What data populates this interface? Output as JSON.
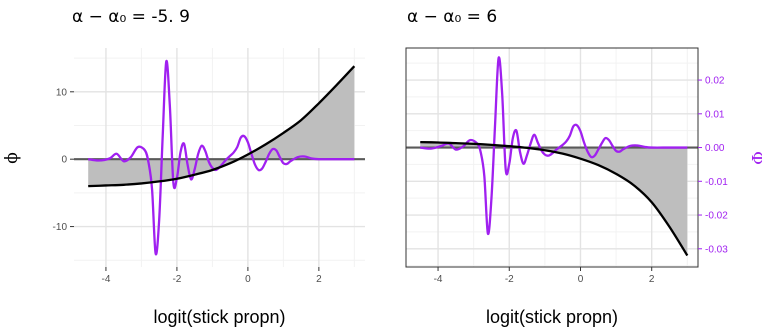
{
  "colors": {
    "phi_line": "#000000",
    "phi_fill": "#bebebe",
    "Phi_line": "#a020f0",
    "zero_line": "#5a5a5a",
    "grid_major": "#e3e3e3",
    "grid_minor": "#f2f2f2",
    "panel_border": "#333333"
  },
  "chart_data": [
    {
      "type": "line",
      "title": "α − α₀ = -5. 9",
      "xlabel": "logit(stick propn)",
      "ylabel": "ϕ",
      "xlim": [
        -4.9,
        3.3
      ],
      "ylim": [
        -16,
        16.5
      ],
      "xticks": [
        -4,
        -2,
        0,
        2
      ],
      "xtick_labels": [
        "-4",
        "-2",
        "0",
        "2"
      ],
      "yticks": [
        -10,
        0,
        10
      ],
      "ytick_labels": [
        "-10",
        "0",
        "10"
      ],
      "grid": true,
      "series": [
        {
          "role": "phi",
          "x": [
            -4.5,
            -4.0,
            -3.5,
            -3.0,
            -2.5,
            -2.0,
            -1.5,
            -1.0,
            -0.5,
            0.0,
            0.5,
            1.0,
            1.5,
            2.0,
            2.5,
            3.0
          ],
          "y": [
            -4.0,
            -3.9,
            -3.8,
            -3.6,
            -3.3,
            -2.9,
            -2.3,
            -1.6,
            -0.6,
            0.7,
            2.2,
            3.9,
            5.8,
            8.3,
            11.0,
            13.8
          ]
        },
        {
          "role": "Phi",
          "x": [
            -4.5,
            -4.2,
            -3.9,
            -3.7,
            -3.5,
            -3.3,
            -3.1,
            -2.9,
            -2.8,
            -2.7,
            -2.6,
            -2.5,
            -2.4,
            -2.3,
            -2.2,
            -2.1,
            -2.0,
            -1.9,
            -1.8,
            -1.7,
            -1.6,
            -1.5,
            -1.4,
            -1.3,
            -1.2,
            -1.1,
            -1.0,
            -0.9,
            -0.8,
            -0.7,
            -0.6,
            -0.5,
            -0.4,
            -0.3,
            -0.2,
            -0.1,
            0.0,
            0.1,
            0.2,
            0.3,
            0.4,
            0.5,
            0.6,
            0.7,
            0.8,
            0.9,
            1.0,
            1.1,
            1.2,
            1.4,
            1.6,
            1.8,
            2.0,
            2.5,
            3.0
          ],
          "y": [
            0.0,
            -0.2,
            0.1,
            0.8,
            -0.3,
            0.3,
            1.8,
            1.3,
            -0.5,
            -4.5,
            -14.0,
            -9.0,
            3.5,
            14.5,
            8.0,
            -3.5,
            -2.8,
            1.0,
            2.3,
            -0.8,
            -3.0,
            -1.5,
            0.8,
            2.0,
            1.2,
            -0.4,
            -1.3,
            -1.6,
            -1.2,
            -0.6,
            0.0,
            0.5,
            1.0,
            1.8,
            3.2,
            3.4,
            2.5,
            0.8,
            -0.8,
            -1.6,
            -1.4,
            -0.4,
            0.8,
            1.5,
            1.3,
            0.3,
            -0.6,
            -0.7,
            -0.3,
            0.3,
            0.4,
            0.1,
            0.0,
            0.0,
            0.0
          ]
        }
      ]
    },
    {
      "type": "line",
      "title": "α − α₀ = 6",
      "xlabel": "logit(stick propn)",
      "ylabel": "Φ",
      "xlim": [
        -4.9,
        3.3
      ],
      "ylim": [
        -0.0354,
        0.0295
      ],
      "xticks": [
        -4,
        -2,
        0,
        2
      ],
      "xtick_labels": [
        "-4",
        "-2",
        "0",
        "2"
      ],
      "yticks": [
        -0.03,
        -0.02,
        -0.01,
        0.0,
        0.01,
        0.02
      ],
      "ytick_labels": [
        "-0.03",
        "-0.02",
        "-0.01",
        "0.00",
        "0.01",
        "0.02"
      ],
      "grid": true,
      "series": [
        {
          "role": "phi",
          "x": [
            -4.5,
            -4.0,
            -3.5,
            -3.0,
            -2.5,
            -2.0,
            -1.5,
            -1.0,
            -0.5,
            0.0,
            0.5,
            1.0,
            1.5,
            2.0,
            2.5,
            3.0
          ],
          "y": [
            0.0016,
            0.0015,
            0.0013,
            0.0011,
            0.0008,
            0.0004,
            -0.0001,
            -0.0008,
            -0.0018,
            -0.0033,
            -0.0052,
            -0.0078,
            -0.0112,
            -0.0162,
            -0.0235,
            -0.032
          ]
        },
        {
          "role": "Phi",
          "x": [
            -4.5,
            -4.2,
            -3.9,
            -3.7,
            -3.5,
            -3.3,
            -3.1,
            -2.9,
            -2.8,
            -2.7,
            -2.6,
            -2.5,
            -2.4,
            -2.3,
            -2.2,
            -2.1,
            -2.0,
            -1.9,
            -1.8,
            -1.7,
            -1.6,
            -1.5,
            -1.4,
            -1.3,
            -1.2,
            -1.1,
            -1.0,
            -0.9,
            -0.8,
            -0.7,
            -0.6,
            -0.5,
            -0.4,
            -0.3,
            -0.2,
            -0.1,
            0.0,
            0.1,
            0.2,
            0.3,
            0.4,
            0.5,
            0.6,
            0.7,
            0.8,
            0.9,
            1.0,
            1.1,
            1.2,
            1.4,
            1.6,
            1.8,
            2.0,
            2.5,
            3.0
          ],
          "y": [
            0.0,
            -0.0003,
            0.0005,
            0.0012,
            -0.0006,
            0.0003,
            0.0022,
            0.0012,
            -0.0015,
            -0.0085,
            -0.0255,
            -0.015,
            0.0065,
            0.0265,
            0.016,
            -0.0065,
            -0.0048,
            0.0028,
            0.005,
            -0.0012,
            -0.0048,
            -0.0022,
            0.0012,
            0.0038,
            0.0015,
            -0.0008,
            -0.0021,
            -0.0024,
            -0.0018,
            -0.0008,
            0.0,
            0.0008,
            0.0018,
            0.0035,
            0.0063,
            0.0066,
            0.0048,
            0.0015,
            -0.0012,
            -0.0028,
            -0.0024,
            -0.0006,
            0.0013,
            0.0028,
            0.0022,
            0.0005,
            -0.001,
            -0.0012,
            -0.0005,
            0.0005,
            0.0006,
            0.0002,
            0.0,
            0.0,
            0.0
          ]
        }
      ]
    }
  ]
}
